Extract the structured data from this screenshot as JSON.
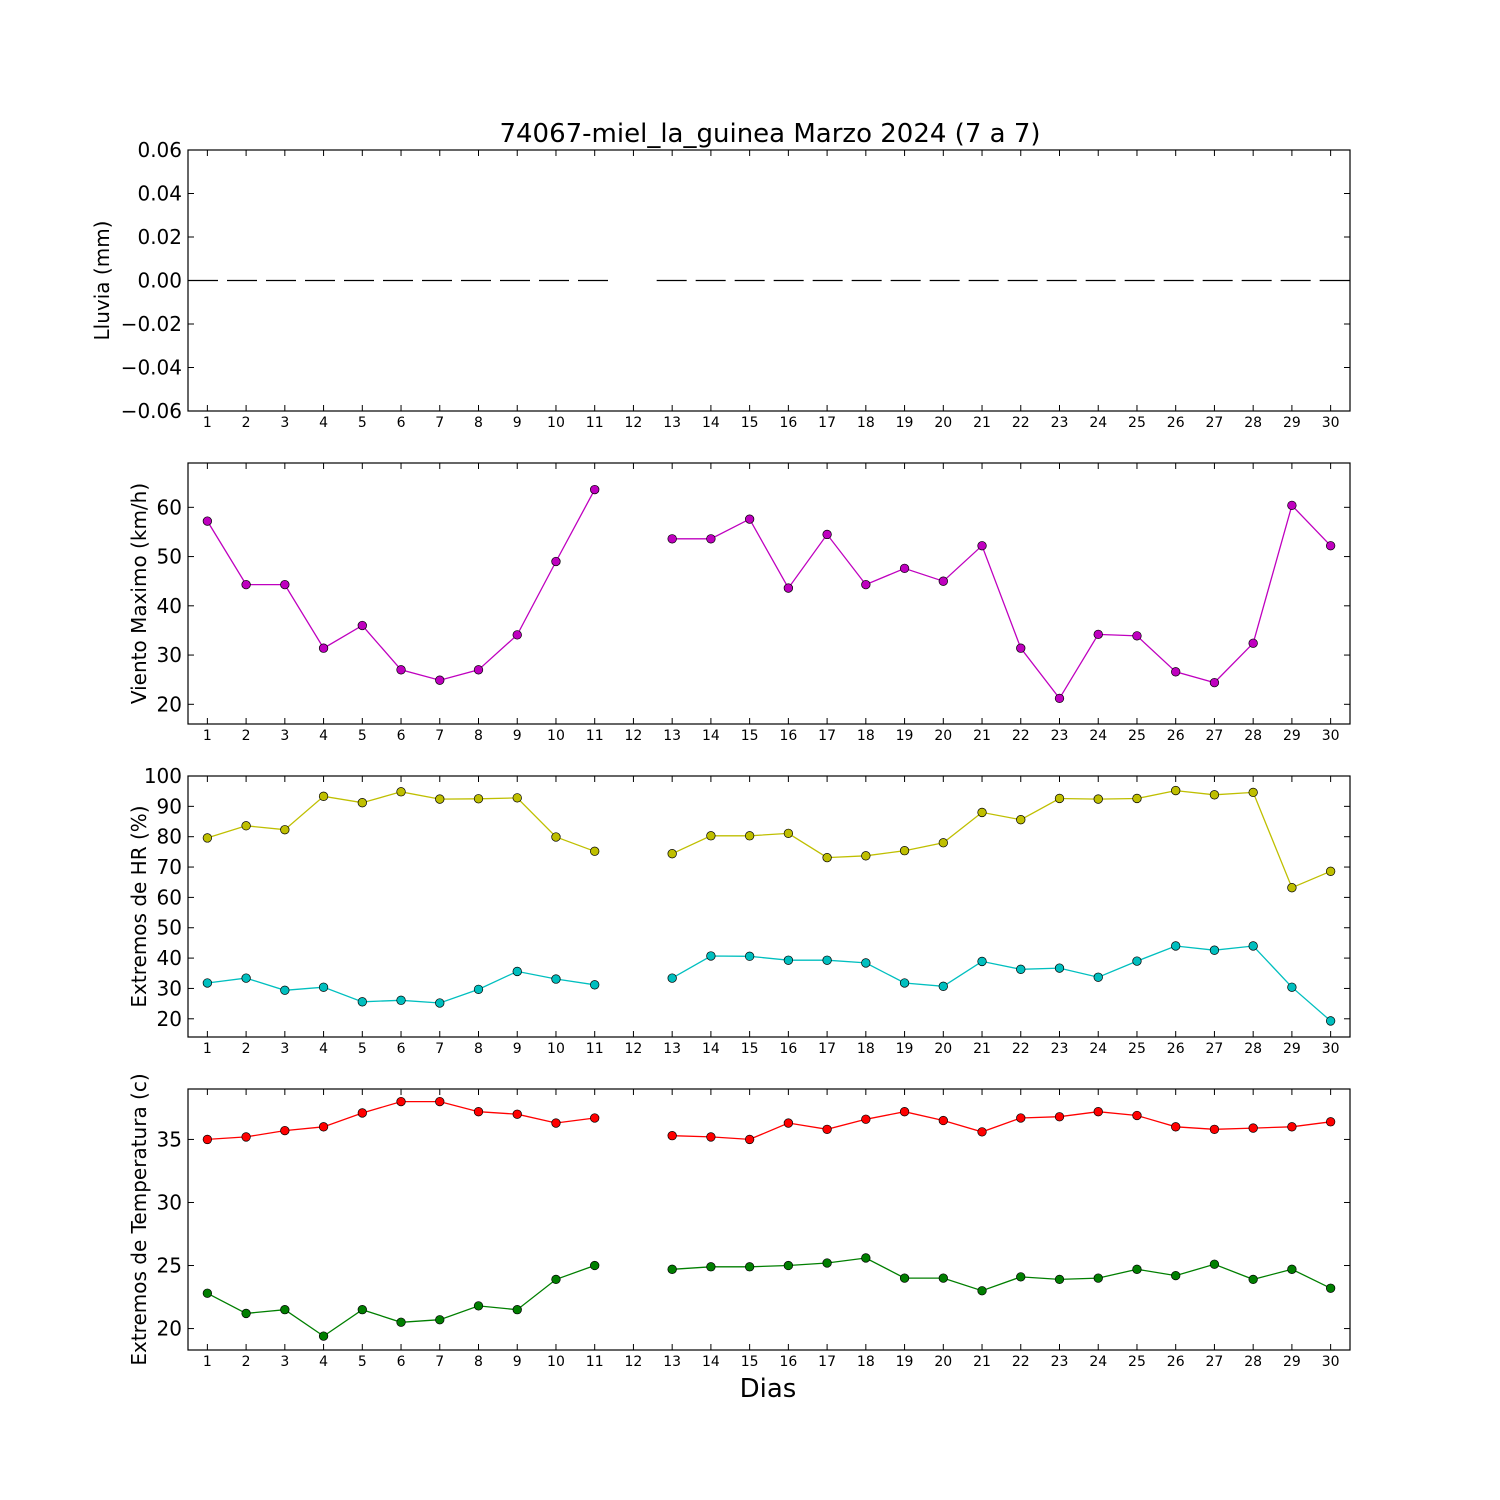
{
  "title": "74067-miel_la_guinea Marzo 2024  (7 a 7)",
  "xlabel": "Dias",
  "chart_data": [
    {
      "type": "line",
      "ylabel": "Lluvia (mm)",
      "ylim": [
        -0.06,
        0.06
      ],
      "yticks": [
        -0.06,
        -0.04,
        -0.02,
        0.0,
        0.02,
        0.04,
        0.06
      ],
      "ytick_labels": [
        "−0.06",
        "−0.04",
        "−0.02",
        "0.00",
        "0.02",
        "0.04",
        "0.06"
      ],
      "x": [
        1,
        2,
        3,
        4,
        5,
        6,
        7,
        8,
        9,
        10,
        11,
        12,
        13,
        14,
        15,
        16,
        17,
        18,
        19,
        20,
        21,
        22,
        23,
        24,
        25,
        26,
        27,
        28,
        29,
        30
      ],
      "xlim": [
        0.5,
        30.5
      ],
      "style": "dashed-segments",
      "series": [
        {
          "color": "#000000",
          "marker": false,
          "values": [
            0,
            0,
            0,
            0,
            0,
            0,
            0,
            0,
            0,
            0,
            0,
            null,
            0,
            0,
            0,
            0,
            0,
            0,
            0,
            0,
            0,
            0,
            0,
            0,
            0,
            0,
            0,
            0,
            0,
            0
          ]
        }
      ]
    },
    {
      "type": "line",
      "ylabel": "Viento Maximo (km/h)",
      "ylim": [
        16,
        69
      ],
      "yticks": [
        20,
        30,
        40,
        50,
        60
      ],
      "ytick_labels": [
        "20",
        "30",
        "40",
        "50",
        "60"
      ],
      "x": [
        1,
        2,
        3,
        4,
        5,
        6,
        7,
        8,
        9,
        10,
        11,
        12,
        13,
        14,
        15,
        16,
        17,
        18,
        19,
        20,
        21,
        22,
        23,
        24,
        25,
        26,
        27,
        28,
        29,
        30
      ],
      "xlim": [
        0.5,
        30.5
      ],
      "series": [
        {
          "color": "#bf00bf",
          "marker": true,
          "values": [
            57.2,
            44.3,
            44.3,
            31.4,
            36.0,
            27.0,
            24.9,
            27.0,
            34.1,
            49.0,
            63.6,
            null,
            53.6,
            53.6,
            57.6,
            43.6,
            54.5,
            44.3,
            47.6,
            45.0,
            52.2,
            31.4,
            21.2,
            34.2,
            33.9,
            26.6,
            24.4,
            32.4,
            60.4,
            52.2
          ]
        }
      ]
    },
    {
      "type": "line",
      "ylabel": "Extremos de HR (%)",
      "ylim": [
        14,
        100
      ],
      "yticks": [
        20,
        30,
        40,
        50,
        60,
        70,
        80,
        90,
        100
      ],
      "ytick_labels": [
        "20",
        "30",
        "40",
        "50",
        "60",
        "70",
        "80",
        "90",
        "100"
      ],
      "x": [
        1,
        2,
        3,
        4,
        5,
        6,
        7,
        8,
        9,
        10,
        11,
        12,
        13,
        14,
        15,
        16,
        17,
        18,
        19,
        20,
        21,
        22,
        23,
        24,
        25,
        26,
        27,
        28,
        29,
        30
      ],
      "xlim": [
        0.5,
        30.5
      ],
      "series": [
        {
          "color": "#bfbf00",
          "marker": true,
          "values": [
            79.6,
            83.6,
            82.3,
            93.3,
            91.2,
            94.8,
            92.4,
            92.5,
            92.8,
            79.9,
            75.2,
            null,
            74.4,
            80.3,
            80.3,
            81.1,
            73.1,
            73.7,
            75.4,
            78.0,
            88.0,
            85.6,
            92.6,
            92.4,
            92.6,
            95.2,
            93.8,
            94.6,
            63.2,
            68.6
          ]
        },
        {
          "color": "#00bfbf",
          "marker": true,
          "values": [
            31.8,
            33.4,
            29.4,
            30.4,
            25.6,
            26.1,
            25.2,
            29.7,
            35.6,
            33.1,
            31.2,
            null,
            33.4,
            40.7,
            40.6,
            39.3,
            39.3,
            38.4,
            31.8,
            30.7,
            38.9,
            36.3,
            36.7,
            33.7,
            39.0,
            44.0,
            42.6,
            44.0,
            30.4,
            19.3
          ]
        }
      ]
    },
    {
      "type": "line",
      "ylabel": "Extremos de Temperatura (c)",
      "ylim": [
        18.3,
        39.0
      ],
      "yticks": [
        20,
        25,
        30,
        35
      ],
      "ytick_labels": [
        "20",
        "25",
        "30",
        "35"
      ],
      "x": [
        1,
        2,
        3,
        4,
        5,
        6,
        7,
        8,
        9,
        10,
        11,
        12,
        13,
        14,
        15,
        16,
        17,
        18,
        19,
        20,
        21,
        22,
        23,
        24,
        25,
        26,
        27,
        28,
        29,
        30
      ],
      "xlim": [
        0.5,
        30.5
      ],
      "series": [
        {
          "color": "#ff0000",
          "marker": true,
          "values": [
            35.0,
            35.2,
            35.7,
            36.0,
            37.1,
            38.0,
            38.0,
            37.2,
            37.0,
            36.3,
            36.7,
            null,
            35.3,
            35.2,
            35.0,
            36.3,
            35.8,
            36.6,
            37.2,
            36.5,
            35.6,
            36.7,
            36.8,
            37.2,
            36.9,
            36.0,
            35.8,
            35.9,
            36.0,
            36.4
          ]
        },
        {
          "color": "#007f00",
          "marker": true,
          "values": [
            22.8,
            21.2,
            21.5,
            19.4,
            21.5,
            20.5,
            20.7,
            21.8,
            21.5,
            23.9,
            25.0,
            null,
            24.7,
            24.9,
            24.9,
            25.0,
            25.2,
            25.6,
            24.0,
            24.0,
            23.0,
            24.1,
            23.9,
            24.0,
            24.7,
            24.2,
            25.1,
            23.9,
            24.7,
            23.2
          ]
        }
      ]
    }
  ]
}
